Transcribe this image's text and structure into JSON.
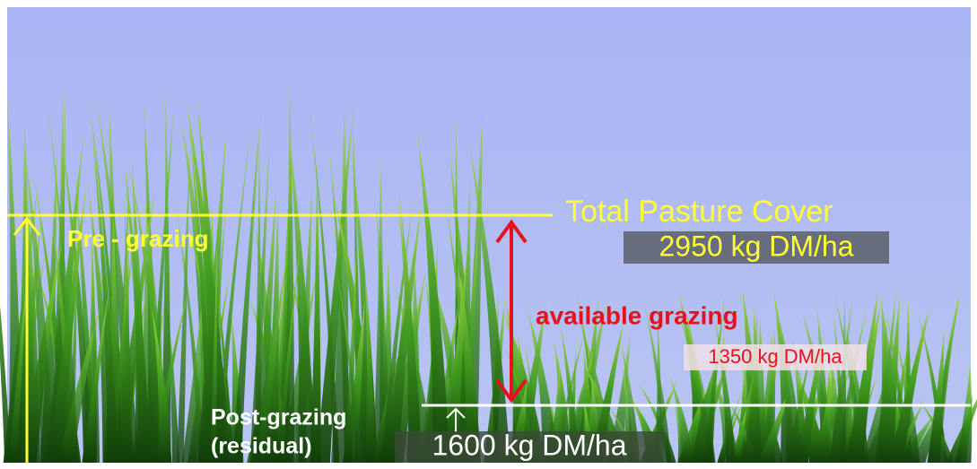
{
  "annotations": {
    "top_line_label": "Total Pasture Cover",
    "top_value": "2950 kg DM/ha",
    "pre_label": "Pre - grazing",
    "available_label": "available grazing",
    "available_value": "1350 kg DM/ha",
    "post_label_1": "Post-grazing",
    "post_label_2": "(residual)",
    "post_value": "1600 kg DM/ha"
  }
}
